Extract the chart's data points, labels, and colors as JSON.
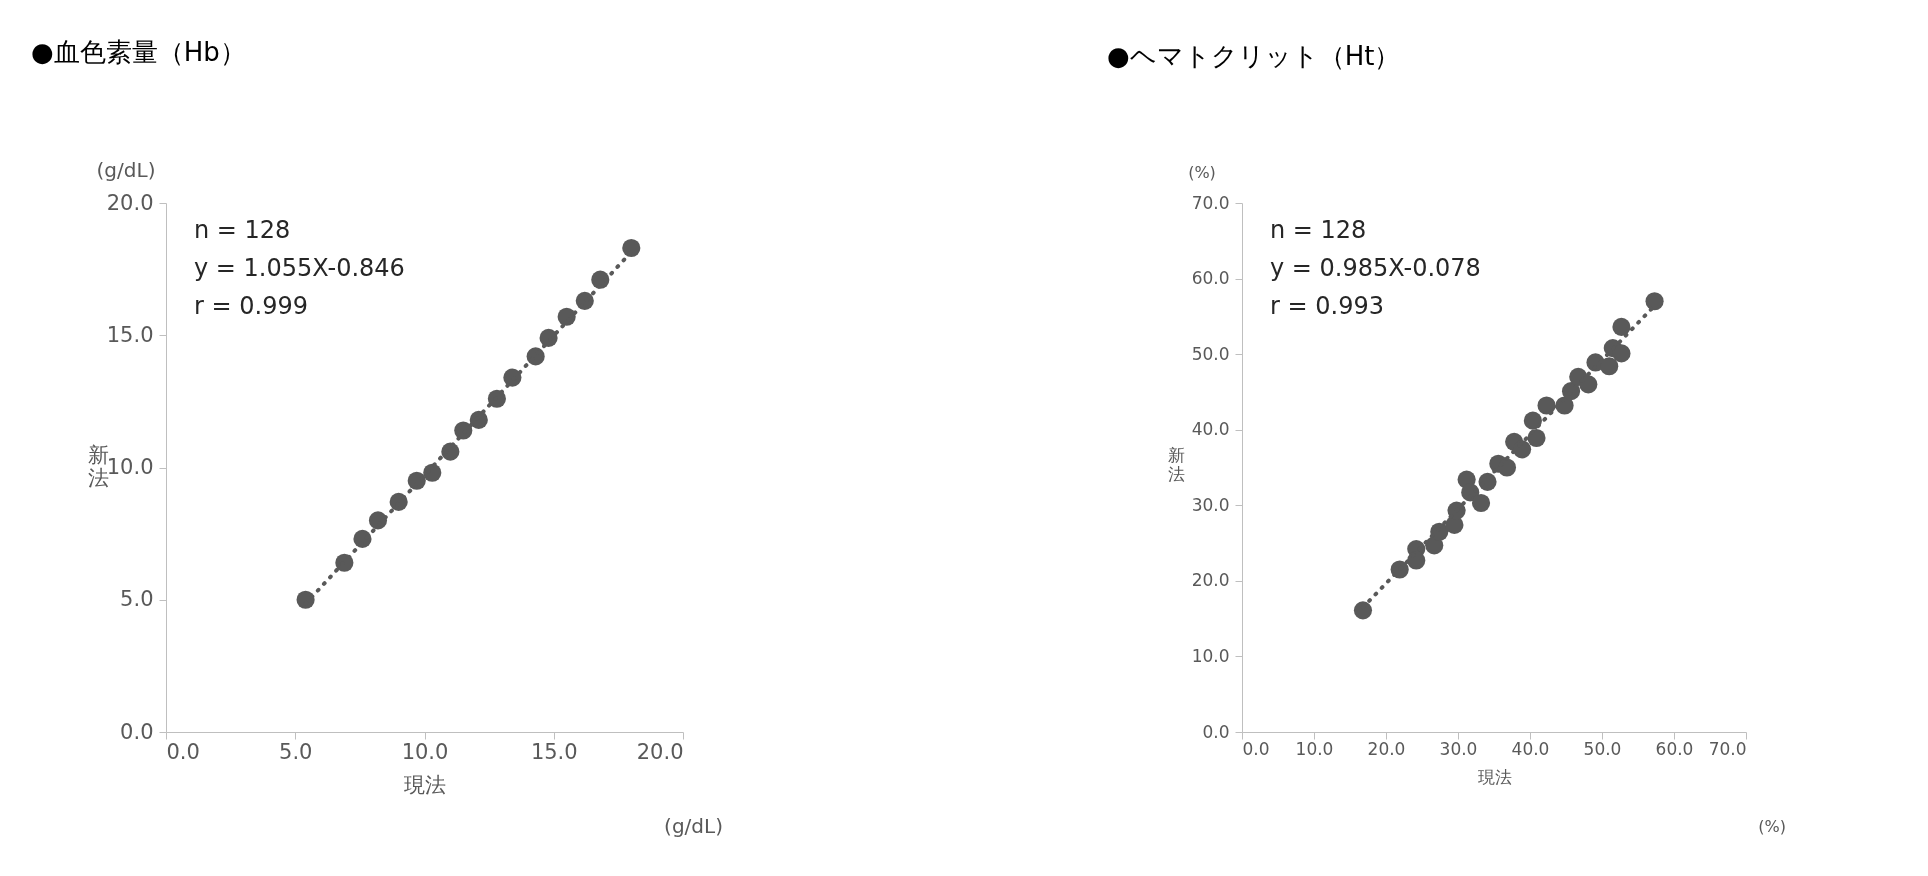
{
  "chart_data": [
    {
      "type": "scatter",
      "title": "●血色素量（Hb）",
      "xlabel": "現法",
      "ylabel": "新法",
      "grid": false,
      "xlim": [
        0,
        20
      ],
      "ylim": [
        0,
        20
      ],
      "xticks": [
        {
          "value": 0,
          "label": "0.0"
        },
        {
          "value": 5,
          "label": "5.0"
        },
        {
          "value": 10,
          "label": "10.0"
        },
        {
          "value": 15,
          "label": "15.0"
        },
        {
          "value": 20,
          "label": "20.0"
        }
      ],
      "yticks": [
        {
          "value": 0,
          "label": "0.0"
        },
        {
          "value": 5,
          "label": "5.0"
        },
        {
          "value": 10,
          "label": "10.0"
        },
        {
          "value": 15,
          "label": "15.0"
        },
        {
          "value": 20,
          "label": "20.0"
        }
      ],
      "annotations": [
        "n = 128",
        "y = 1.055X-0.846",
        "r = 0.999",
        "(g/dL)",
        "(g/dL)"
      ],
      "series": [
        {
          "marker": "circle",
          "color": "#595959",
          "x": [
            5.4,
            6.9,
            7.6,
            8.2,
            9.0,
            9.7,
            10.3,
            11.0,
            11.5,
            12.1,
            12.8,
            13.4,
            14.3,
            14.8,
            15.5,
            16.2,
            16.8,
            18.0
          ],
          "values": [
            5.0,
            6.4,
            7.3,
            8.0,
            8.7,
            9.5,
            9.8,
            10.6,
            11.4,
            11.8,
            12.6,
            13.4,
            14.2,
            14.9,
            15.7,
            16.3,
            17.1,
            18.3
          ]
        },
        {
          "type": "line",
          "marker": "none",
          "line_style": "dotted",
          "color": "#595959",
          "x": [
            5.4,
            18.0
          ],
          "values": [
            4.85,
            18.15
          ]
        }
      ]
    },
    {
      "type": "scatter",
      "title": "●ヘマトクリット（Ht）",
      "xlabel": "現法",
      "ylabel": "新法",
      "grid": false,
      "xlim": [
        0,
        70
      ],
      "ylim": [
        0,
        70
      ],
      "xticks": [
        {
          "value": 0,
          "label": "0.0"
        },
        {
          "value": 10,
          "label": "10.0"
        },
        {
          "value": 20,
          "label": "20.0"
        },
        {
          "value": 30,
          "label": "30.0"
        },
        {
          "value": 40,
          "label": "40.0"
        },
        {
          "value": 50,
          "label": "50.0"
        },
        {
          "value": 60,
          "label": "60.0"
        },
        {
          "value": 70,
          "label": "70.0"
        }
      ],
      "yticks": [
        {
          "value": 0,
          "label": "0.0"
        },
        {
          "value": 10,
          "label": "10.0"
        },
        {
          "value": 20,
          "label": "20.0"
        },
        {
          "value": 30,
          "label": "30.0"
        },
        {
          "value": 40,
          "label": "40.0"
        },
        {
          "value": 50,
          "label": "50.0"
        },
        {
          "value": 60,
          "label": "60.0"
        },
        {
          "value": 70,
          "label": "70.0"
        }
      ],
      "annotations": [
        "n = 128",
        "y = 0.985X-0.078",
        "r = 0.993",
        "(%)",
        "(%)"
      ],
      "series": [
        {
          "marker": "circle",
          "color": "#595959",
          "x": [
            16.8,
            21.9,
            24.2,
            24.2,
            26.7,
            27.4,
            29.5,
            29.8,
            31.2,
            31.7,
            33.2,
            34.1,
            35.6,
            36.8,
            37.8,
            38.9,
            40.9,
            40.4,
            42.3,
            44.8,
            45.7,
            46.7,
            48.1,
            49.1,
            51.0,
            51.5,
            52.7,
            52.7,
            57.3
          ],
          "values": [
            16.1,
            21.5,
            24.2,
            22.7,
            24.7,
            26.5,
            27.4,
            29.3,
            33.4,
            31.7,
            30.3,
            33.1,
            35.5,
            35.0,
            38.4,
            37.4,
            38.9,
            41.2,
            43.2,
            43.2,
            45.1,
            47.0,
            46.0,
            48.9,
            48.4,
            50.8,
            50.1,
            53.6,
            57.0
          ]
        },
        {
          "type": "line",
          "marker": "none",
          "line_style": "dotted",
          "color": "#595959",
          "x": [
            16.8,
            57.3
          ],
          "values": [
            16.5,
            56.4
          ]
        }
      ]
    }
  ]
}
